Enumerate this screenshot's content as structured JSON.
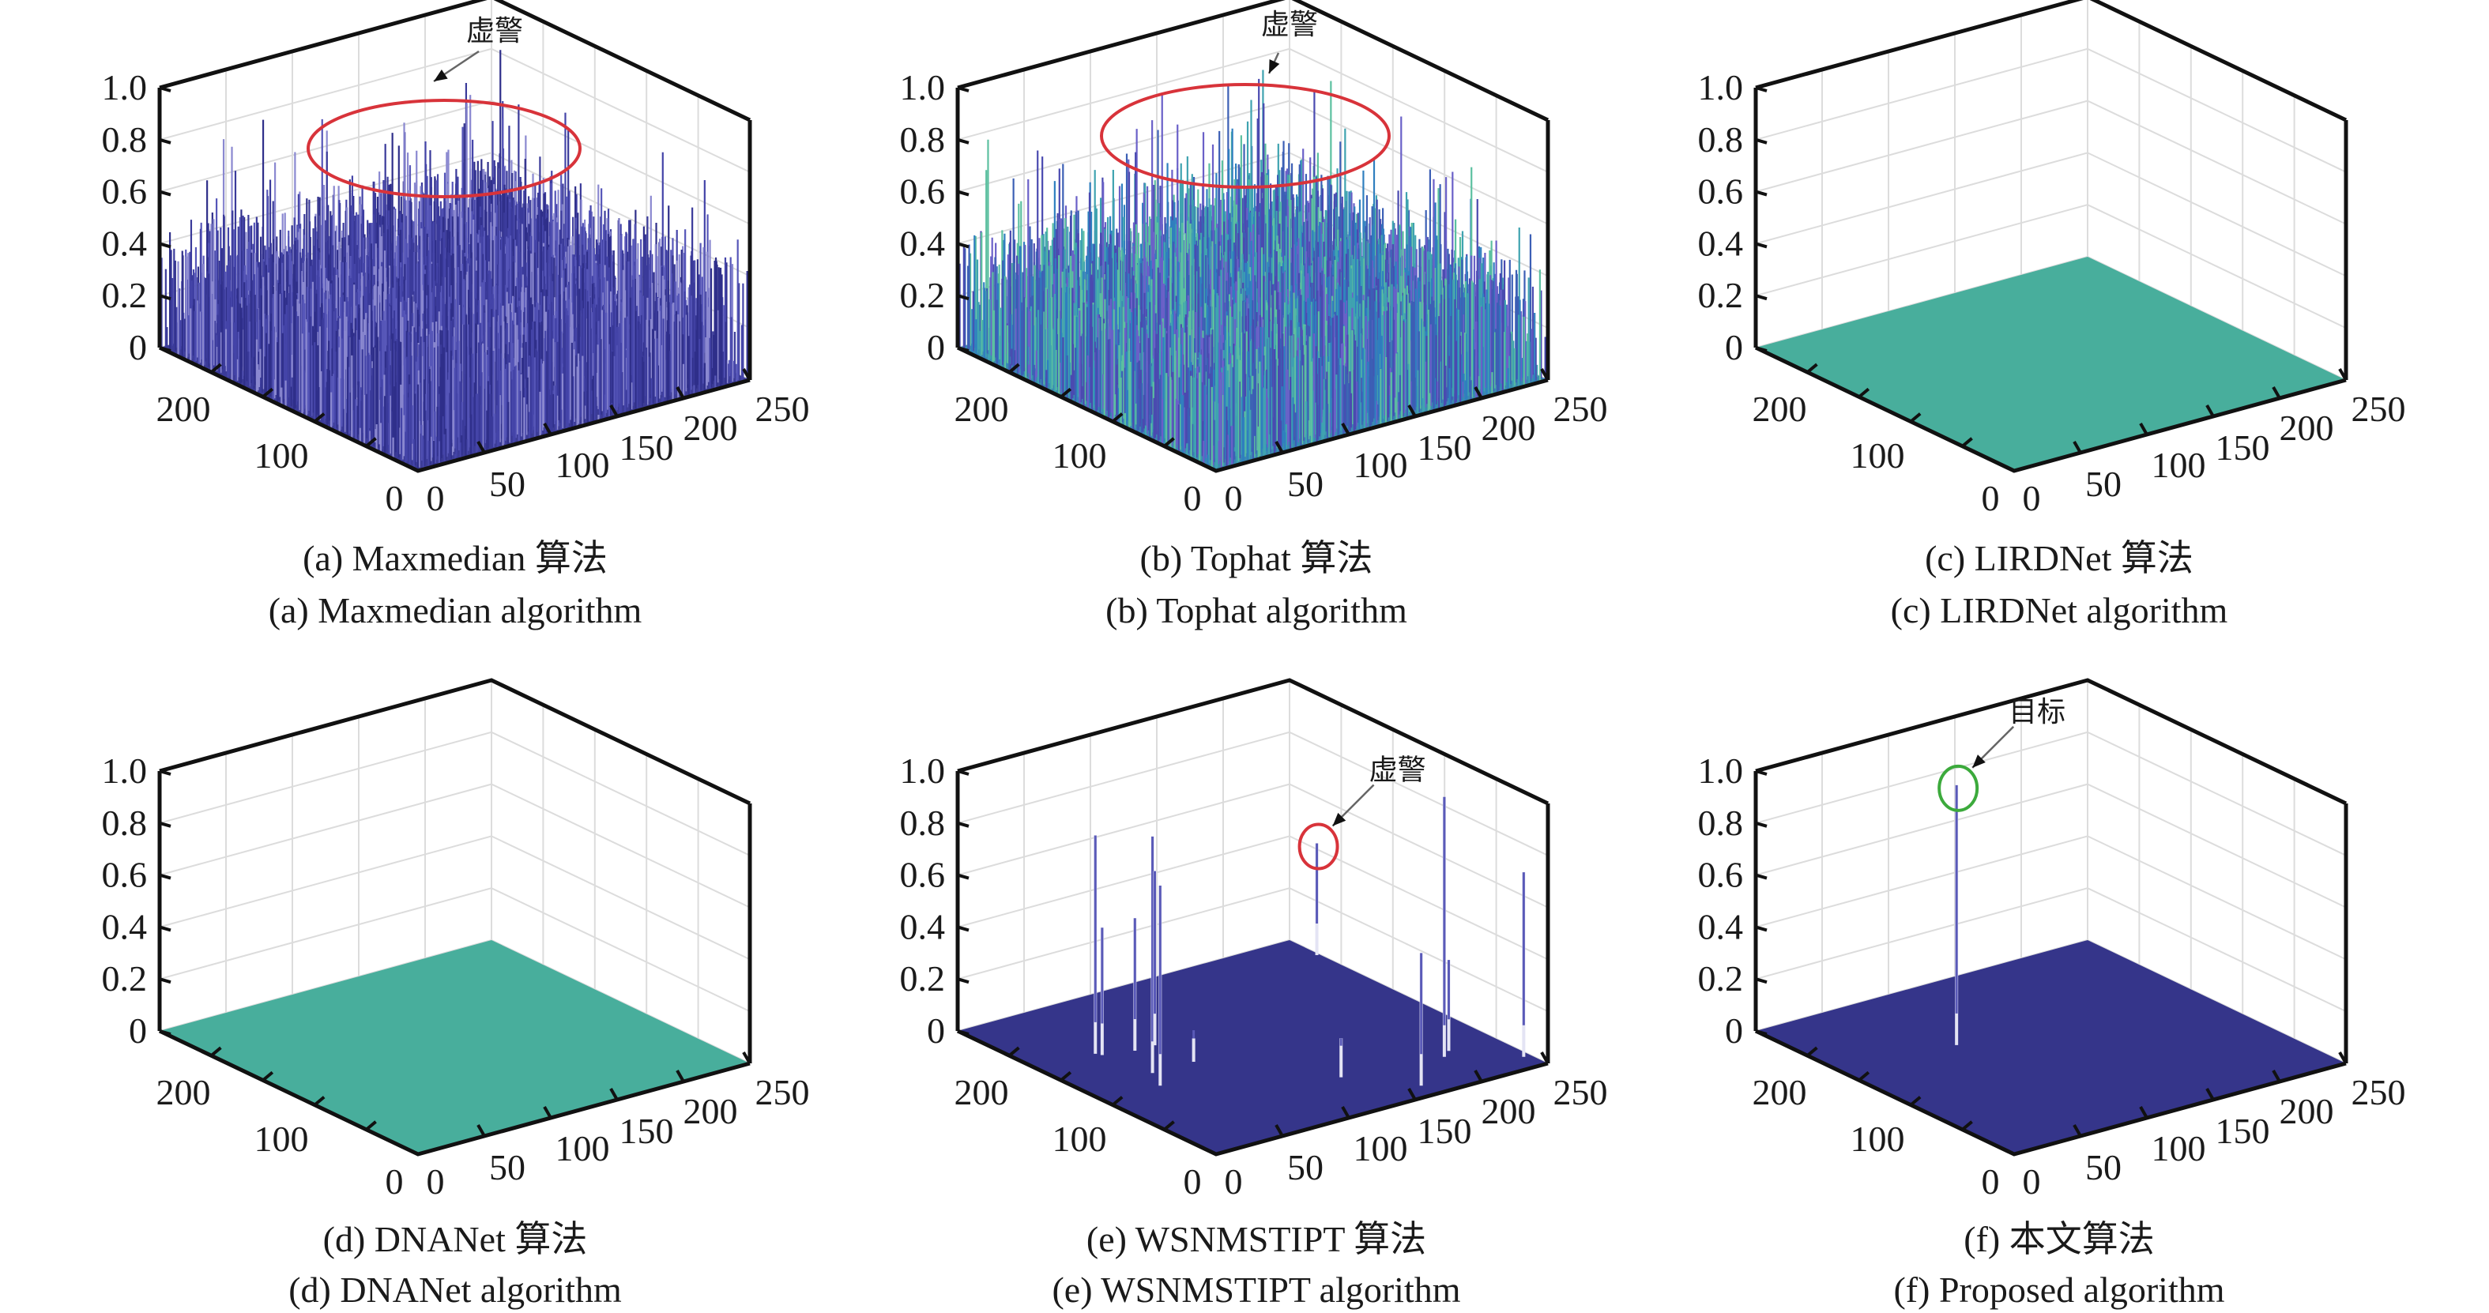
{
  "chart_data": [
    {
      "id": "a",
      "type": "surface3d",
      "caption_zh": "(a) Maxmedian 算法",
      "caption_en": "(a) Maxmedian algorithm",
      "xlim": [
        0,
        250
      ],
      "ylim": [
        0,
        250
      ],
      "zlim": [
        0,
        1
      ],
      "xticks": [
        "0",
        "50",
        "100",
        "150",
        "200",
        "250"
      ],
      "yticks": [
        "0",
        "100",
        "200"
      ],
      "zticks": [
        "0",
        "0.2",
        "0.4",
        "0.6",
        "0.8",
        "1.0"
      ],
      "grid": true,
      "surface": "dense clutter",
      "z_observed_range": [
        0,
        0.95
      ],
      "colors": [
        "#2f2f8a",
        "#3a3a9a",
        "#4444a8",
        "#5656b8",
        "#8a88d0"
      ],
      "floor_color": "#3c3c96",
      "annotation": {
        "label": "虚警",
        "marker": "ellipse",
        "color": "#d8333a"
      }
    },
    {
      "id": "b",
      "type": "surface3d",
      "caption_zh": "(b) Tophat 算法",
      "caption_en": "(b) Tophat algorithm",
      "xlim": [
        0,
        250
      ],
      "ylim": [
        0,
        250
      ],
      "zlim": [
        0,
        1
      ],
      "xticks": [
        "0",
        "50",
        "100",
        "150",
        "200",
        "250"
      ],
      "yticks": [
        "0",
        "100",
        "200"
      ],
      "zticks": [
        "0",
        "0.2",
        "0.4",
        "0.6",
        "0.8",
        "1.0"
      ],
      "grid": true,
      "surface": "dense clutter",
      "z_observed_range": [
        0,
        1.0
      ],
      "colors": [
        "#3c5fb5",
        "#4a4ab0",
        "#3fa3b0",
        "#5cc0a0",
        "#2f7fbf",
        "#6a60c8"
      ],
      "floor_color": "#3a8ab0",
      "annotation": {
        "label": "虚警",
        "marker": "ellipse",
        "color": "#d8333a"
      }
    },
    {
      "id": "c",
      "type": "surface3d",
      "caption_zh": "(c) LIRDNet 算法",
      "caption_en": "(c) LIRDNet algorithm",
      "xlim": [
        0,
        250
      ],
      "ylim": [
        0,
        250
      ],
      "zlim": [
        0,
        1
      ],
      "xticks": [
        "0",
        "50",
        "100",
        "150",
        "200",
        "250"
      ],
      "yticks": [
        "0",
        "100",
        "200"
      ],
      "zticks": [
        "0",
        "0.2",
        "0.4",
        "0.6",
        "0.8",
        "1.0"
      ],
      "grid": true,
      "surface": "flat",
      "z_observed_range": [
        0,
        0
      ],
      "floor_color": "#48ae9c"
    },
    {
      "id": "d",
      "type": "surface3d",
      "caption_zh": "(d) DNANet 算法",
      "caption_en": "(d) DNANet algorithm",
      "xlim": [
        0,
        250
      ],
      "ylim": [
        0,
        250
      ],
      "zlim": [
        0,
        1
      ],
      "xticks": [
        "0",
        "50",
        "100",
        "150",
        "200",
        "250"
      ],
      "yticks": [
        "0",
        "100",
        "200"
      ],
      "zticks": [
        "0",
        "0.2",
        "0.4",
        "0.6",
        "0.8",
        "1.0"
      ],
      "grid": true,
      "surface": "flat",
      "z_observed_range": [
        0,
        0
      ],
      "floor_color": "#48ae9c"
    },
    {
      "id": "e",
      "type": "surface3d",
      "caption_zh": "(e) WSNMSTIPT 算法",
      "caption_en": "(e) WSNMSTIPT algorithm",
      "xlim": [
        0,
        250
      ],
      "ylim": [
        0,
        250
      ],
      "zlim": [
        0,
        1
      ],
      "xticks": [
        "0",
        "50",
        "100",
        "150",
        "200",
        "250"
      ],
      "yticks": [
        "0",
        "100",
        "200"
      ],
      "zticks": [
        "0",
        "0.2",
        "0.4",
        "0.6",
        "0.8",
        "1.0"
      ],
      "grid": true,
      "surface": "flat with spikes",
      "floor_color": "#35358a",
      "spike_color": "#5a5ab8",
      "spikes": [
        {
          "x": 43,
          "y": 172,
          "z": 0.84
        },
        {
          "x": 45,
          "y": 168,
          "z": 0.49
        },
        {
          "x": 65,
          "y": 162,
          "z": 0.51
        },
        {
          "x": 51,
          "y": 127,
          "z": 0.91
        },
        {
          "x": 80,
          "y": 162,
          "z": 0.67
        },
        {
          "x": 42,
          "y": 108,
          "z": 0.77
        },
        {
          "x": 82,
          "y": 127,
          "z": 0.09
        },
        {
          "x": 248,
          "y": 221,
          "z": 0.43
        },
        {
          "x": 137,
          "y": 55,
          "z": 0.15
        },
        {
          "x": 167,
          "y": 16,
          "z": 0.51
        },
        {
          "x": 207,
          "y": 45,
          "z": 1.0
        },
        {
          "x": 215,
          "y": 51,
          "z": 0.35
        },
        {
          "x": 245,
          "y": 17,
          "z": 0.71
        }
      ],
      "annotation": {
        "label": "虚警",
        "marker": "circle",
        "color": "#d8333a",
        "target_spike": 7
      }
    },
    {
      "id": "f",
      "type": "surface3d",
      "caption_zh": "(f) 本文算法",
      "caption_en": "(f) Proposed algorithm",
      "xlim": [
        0,
        250
      ],
      "ylim": [
        0,
        250
      ],
      "zlim": [
        0,
        1
      ],
      "xticks": [
        "0",
        "50",
        "100",
        "150",
        "200",
        "250"
      ],
      "yticks": [
        "0",
        "100",
        "200"
      ],
      "zticks": [
        "0",
        "0.2",
        "0.4",
        "0.6",
        "0.8",
        "1.0"
      ],
      "grid": true,
      "surface": "flat with spikes",
      "floor_color": "#35358a",
      "spike_color": "#5a5ab8",
      "spikes": [
        {
          "x": 82,
          "y": 161,
          "z": 1.0
        }
      ],
      "annotation": {
        "label": "目标",
        "marker": "circle",
        "color": "#3caa3c",
        "target_spike": 0
      }
    }
  ]
}
